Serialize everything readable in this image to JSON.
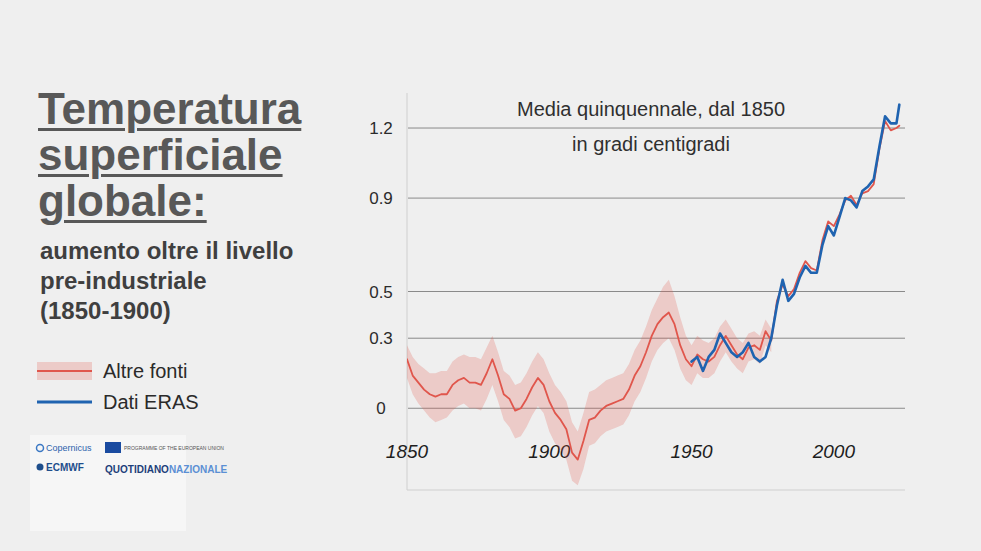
{
  "chart_data": {
    "type": "line",
    "title": "Temperatura superficiale globale:",
    "subtitle": "aumento oltre il livello pre-industriale (1850-1900)",
    "annotations": [
      "Media quinquennale, dal 1850",
      "in gradi centigradi"
    ],
    "x": [
      1850,
      1852,
      1854,
      1856,
      1858,
      1860,
      1862,
      1864,
      1866,
      1868,
      1870,
      1872,
      1874,
      1876,
      1878,
      1880,
      1882,
      1884,
      1886,
      1888,
      1890,
      1892,
      1894,
      1896,
      1898,
      1900,
      1902,
      1904,
      1906,
      1908,
      1910,
      1912,
      1914,
      1916,
      1918,
      1920,
      1922,
      1924,
      1926,
      1928,
      1930,
      1932,
      1934,
      1936,
      1938,
      1940,
      1942,
      1944,
      1946,
      1948,
      1950,
      1952,
      1954,
      1956,
      1958,
      1960,
      1962,
      1964,
      1966,
      1968,
      1970,
      1972,
      1974,
      1976,
      1978,
      1980,
      1982,
      1984,
      1986,
      1988,
      1990,
      1992,
      1994,
      1996,
      1998,
      2000,
      2002,
      2004,
      2006,
      2008,
      2010,
      2012,
      2014,
      2016,
      2018,
      2020,
      2022,
      2023
    ],
    "xlim": [
      1850,
      2025
    ],
    "xticks": [
      1850,
      1900,
      1950,
      2000
    ],
    "ylim": [
      -0.35,
      1.35
    ],
    "yticks": [
      0,
      0.3,
      0.5,
      0.9,
      1.2
    ],
    "grid": true,
    "legend": "left",
    "series": [
      {
        "name": "Altre fonti",
        "color": "#e0564c",
        "values": [
          0.21,
          0.14,
          0.11,
          0.08,
          0.06,
          0.05,
          0.06,
          0.06,
          0.1,
          0.12,
          0.13,
          0.11,
          0.11,
          0.1,
          0.15,
          0.21,
          0.14,
          0.06,
          0.04,
          -0.01,
          0.0,
          0.04,
          0.09,
          0.13,
          0.1,
          0.03,
          -0.02,
          -0.05,
          -0.09,
          -0.19,
          -0.22,
          -0.14,
          -0.05,
          -0.04,
          -0.01,
          0.01,
          0.02,
          0.03,
          0.04,
          0.08,
          0.14,
          0.18,
          0.24,
          0.31,
          0.36,
          0.39,
          0.41,
          0.36,
          0.27,
          0.21,
          0.18,
          0.23,
          0.21,
          0.2,
          0.22,
          0.27,
          0.31,
          0.27,
          0.23,
          0.21,
          0.26,
          0.27,
          0.25,
          0.33,
          0.29,
          0.46,
          0.53,
          0.48,
          0.51,
          0.58,
          0.63,
          0.6,
          0.59,
          0.72,
          0.8,
          0.78,
          0.83,
          0.89,
          0.91,
          0.87,
          0.92,
          0.93,
          0.96,
          1.11,
          1.23,
          1.19,
          1.2,
          1.21
        ],
        "lower": [
          0.13,
          0.06,
          0.02,
          -0.01,
          -0.04,
          -0.06,
          -0.05,
          -0.04,
          -0.01,
          0.01,
          0.02,
          0.0,
          0.0,
          -0.01,
          0.04,
          0.1,
          0.03,
          -0.05,
          -0.08,
          -0.13,
          -0.12,
          -0.08,
          -0.03,
          0.01,
          -0.02,
          -0.1,
          -0.15,
          -0.18,
          -0.22,
          -0.31,
          -0.33,
          -0.26,
          -0.16,
          -0.15,
          -0.12,
          -0.1,
          -0.09,
          -0.08,
          -0.07,
          -0.03,
          0.03,
          0.07,
          0.13,
          0.2,
          0.25,
          0.28,
          0.3,
          0.25,
          0.17,
          0.12,
          0.1,
          0.15,
          0.13,
          0.13,
          0.15,
          0.2,
          0.24,
          0.2,
          0.17,
          0.15,
          0.2,
          0.21,
          0.19,
          0.27,
          0.24,
          null,
          null,
          null,
          null,
          null,
          null,
          null,
          null,
          null,
          null,
          null,
          null,
          null,
          null,
          null,
          null,
          null,
          null,
          null,
          null,
          null,
          null,
          null
        ],
        "upper": [
          0.27,
          0.22,
          0.19,
          0.17,
          0.15,
          0.15,
          0.16,
          0.16,
          0.2,
          0.22,
          0.23,
          0.22,
          0.22,
          0.21,
          0.26,
          0.31,
          0.24,
          0.16,
          0.14,
          0.1,
          0.11,
          0.15,
          0.2,
          0.24,
          0.21,
          0.15,
          0.1,
          0.07,
          0.03,
          -0.06,
          -0.1,
          -0.02,
          0.07,
          0.08,
          0.1,
          0.12,
          0.13,
          0.14,
          0.15,
          0.19,
          0.25,
          0.29,
          0.35,
          0.42,
          0.47,
          0.52,
          0.55,
          0.48,
          0.39,
          0.31,
          0.27,
          0.31,
          0.29,
          0.28,
          0.3,
          0.35,
          0.38,
          0.34,
          0.3,
          0.28,
          0.32,
          0.33,
          0.31,
          0.38,
          0.34,
          null,
          null,
          null,
          null,
          null,
          null,
          null,
          null,
          null,
          null,
          null,
          null,
          null,
          null,
          null,
          null,
          null,
          null,
          null,
          null,
          null,
          null,
          null
        ]
      },
      {
        "name": "Dati ERAS",
        "color": "#1f63b0",
        "values": [
          null,
          null,
          null,
          null,
          null,
          null,
          null,
          null,
          null,
          null,
          null,
          null,
          null,
          null,
          null,
          null,
          null,
          null,
          null,
          null,
          null,
          null,
          null,
          null,
          null,
          null,
          null,
          null,
          null,
          null,
          null,
          null,
          null,
          null,
          null,
          null,
          null,
          null,
          null,
          null,
          null,
          null,
          null,
          null,
          null,
          null,
          null,
          null,
          null,
          null,
          0.2,
          0.22,
          0.16,
          0.22,
          0.25,
          0.32,
          0.28,
          0.24,
          0.22,
          0.24,
          0.28,
          0.22,
          0.2,
          0.22,
          0.3,
          0.44,
          0.55,
          0.46,
          0.49,
          0.56,
          0.61,
          0.58,
          0.58,
          0.7,
          0.78,
          0.74,
          0.82,
          0.9,
          0.89,
          0.86,
          0.93,
          0.95,
          0.98,
          1.12,
          1.25,
          1.22,
          1.22,
          1.3
        ]
      }
    ]
  },
  "logos": {
    "copernicus": "Copernicus",
    "ecmwf": "ECMWF",
    "eu": "PROGRAMME OF THE EUROPEAN UNION",
    "publisher": [
      "QUOTIDIANO",
      "NAZIONALE"
    ]
  }
}
